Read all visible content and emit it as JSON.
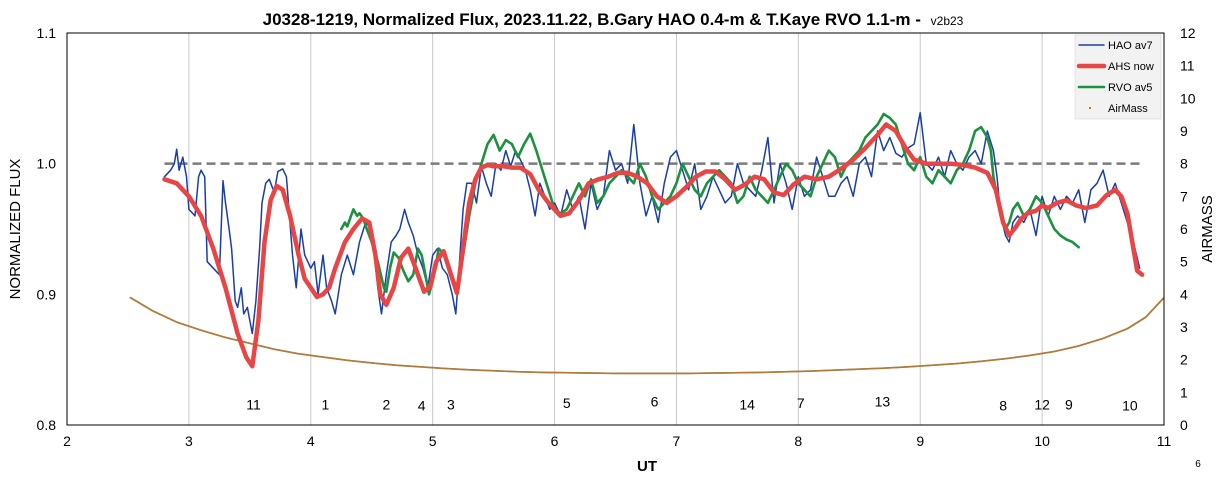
{
  "chart_data": {
    "type": "line",
    "title": "J0328-1219, Normalized Flux, 2023.11.22, B.Gary HAO 0.4-m & T.Kaye RVO 1.1-m -",
    "version": "v2b23",
    "xlabel": "UT",
    "ylabel": "NORMALIZED FLUX",
    "y2label": "AIRMASS",
    "xlim": [
      2,
      11
    ],
    "ylim": [
      0.8,
      1.1
    ],
    "y2lim": [
      0,
      12
    ],
    "x_ticks": [
      "2",
      "3",
      "4",
      "5",
      "6",
      "7",
      "8",
      "9",
      "10",
      "11"
    ],
    "y_ticks": [
      "0.8",
      "0.9",
      "1.0",
      "1.1"
    ],
    "y2_ticks": [
      "0",
      "1",
      "2",
      "3",
      "4",
      "5",
      "6",
      "7",
      "8",
      "9",
      "10",
      "11",
      "12"
    ],
    "grid": "vertical",
    "legend_position": "top-right",
    "reference_line": {
      "y": 1.0,
      "x": [
        2.8,
        10.8
      ],
      "color": "#7a7a7a"
    },
    "series": [
      {
        "name": "HAO av7",
        "color": "#1a3ea8",
        "x": [
          2.8,
          2.85,
          2.88,
          2.9,
          2.92,
          2.95,
          2.98,
          3.0,
          3.05,
          3.08,
          3.1,
          3.13,
          3.15,
          3.2,
          3.25,
          3.28,
          3.3,
          3.33,
          3.35,
          3.38,
          3.4,
          3.43,
          3.45,
          3.48,
          3.5,
          3.52,
          3.55,
          3.58,
          3.6,
          3.63,
          3.66,
          3.7,
          3.73,
          3.77,
          3.8,
          3.85,
          3.88,
          3.92,
          3.95,
          4.0,
          4.03,
          4.06,
          4.1,
          4.13,
          4.17,
          4.2,
          4.25,
          4.3,
          4.35,
          4.4,
          4.45,
          4.5,
          4.55,
          4.58,
          4.62,
          4.66,
          4.7,
          4.73,
          4.77,
          4.8,
          4.84,
          4.88,
          4.92,
          4.96,
          5.0,
          5.04,
          5.08,
          5.12,
          5.16,
          5.19,
          5.22,
          5.25,
          5.28,
          5.32,
          5.36,
          5.4,
          5.44,
          5.48,
          5.52,
          5.56,
          5.6,
          5.64,
          5.68,
          5.72,
          5.76,
          5.8,
          5.84,
          5.88,
          5.92,
          5.96,
          6.0,
          6.05,
          6.1,
          6.15,
          6.2,
          6.25,
          6.3,
          6.35,
          6.4,
          6.45,
          6.5,
          6.55,
          6.6,
          6.65,
          6.7,
          6.75,
          6.8,
          6.85,
          6.9,
          6.95,
          7.0,
          7.05,
          7.1,
          7.15,
          7.2,
          7.25,
          7.3,
          7.35,
          7.4,
          7.45,
          7.5,
          7.55,
          7.6,
          7.65,
          7.7,
          7.75,
          7.8,
          7.85,
          7.9,
          7.95,
          8.0,
          8.05,
          8.1,
          8.15,
          8.2,
          8.25,
          8.3,
          8.35,
          8.4,
          8.45,
          8.5,
          8.55,
          8.6,
          8.65,
          8.7,
          8.75,
          8.8,
          8.85,
          8.9,
          8.95,
          9.0,
          9.05,
          9.1,
          9.15,
          9.2,
          9.25,
          9.3,
          9.35,
          9.4,
          9.45,
          9.5,
          9.55,
          9.6,
          9.63,
          9.66,
          9.7,
          9.73,
          9.76,
          9.8,
          9.85,
          9.9,
          9.95,
          10.0,
          10.05,
          10.1,
          10.15,
          10.2,
          10.25,
          10.3,
          10.35,
          10.4,
          10.45,
          10.5,
          10.55,
          10.6,
          10.65,
          10.7,
          10.75,
          10.8
        ],
        "values": [
          0.99,
          0.995,
          1.0,
          1.011,
          0.995,
          1.005,
          0.99,
          0.965,
          0.96,
          0.99,
          0.995,
          0.99,
          0.925,
          0.92,
          0.915,
          0.987,
          0.97,
          0.95,
          0.935,
          0.895,
          0.89,
          0.905,
          0.885,
          0.89,
          0.88,
          0.87,
          0.895,
          0.935,
          0.97,
          0.985,
          0.988,
          0.978,
          0.994,
          0.996,
          0.99,
          0.93,
          0.905,
          0.95,
          0.93,
          0.92,
          0.925,
          0.9,
          0.93,
          0.905,
          0.895,
          0.885,
          0.915,
          0.93,
          0.915,
          0.94,
          0.955,
          0.95,
          0.905,
          0.885,
          0.915,
          0.94,
          0.945,
          0.95,
          0.965,
          0.955,
          0.945,
          0.93,
          0.92,
          0.905,
          0.93,
          0.935,
          0.92,
          0.915,
          0.9,
          0.885,
          0.925,
          0.965,
          0.985,
          0.985,
          0.97,
          0.998,
          0.985,
          0.975,
          1.0,
          0.995,
          1.01,
          0.998,
          1.01,
          1.003,
          0.995,
          0.98,
          0.96,
          0.985,
          0.975,
          0.965,
          0.97,
          0.96,
          0.98,
          0.965,
          0.975,
          0.95,
          0.985,
          0.965,
          0.975,
          1.01,
          0.995,
          1.0,
          0.985,
          1.03,
          0.985,
          0.96,
          0.975,
          0.955,
          0.985,
          1.005,
          1.01,
          0.995,
          0.98,
          1.0,
          0.965,
          0.975,
          0.99,
          0.98,
          0.97,
          0.975,
          1.0,
          0.985,
          0.98,
          0.975,
          0.995,
          1.02,
          0.97,
          1.0,
          0.985,
          0.965,
          0.99,
          0.975,
          0.98,
          1.005,
          0.99,
          0.975,
          0.975,
          0.985,
          0.99,
          0.975,
          1.0,
          1.005,
          0.99,
          1.025,
          1.01,
          1.02,
          1.008,
          1.005,
          1.012,
          1.015,
          1.039,
          1.0,
          0.995,
          1.005,
          0.99,
          1.01,
          1.0,
          0.995,
          1.005,
          1.01,
          1.0,
          1.025,
          1.01,
          0.99,
          0.96,
          0.945,
          0.94,
          0.955,
          0.96,
          0.955,
          0.965,
          0.945,
          0.975,
          0.96,
          0.975,
          0.965,
          0.975,
          0.97,
          0.98,
          0.955,
          0.98,
          0.985,
          0.995,
          0.975,
          0.985,
          0.97,
          0.955,
          0.94,
          0.92
        ]
      },
      {
        "name": "AHS now",
        "color": "#e84545",
        "x": [
          2.8,
          2.9,
          3.0,
          3.1,
          3.2,
          3.3,
          3.4,
          3.47,
          3.52,
          3.57,
          3.62,
          3.67,
          3.72,
          3.77,
          3.83,
          3.9,
          3.95,
          4.0,
          4.05,
          4.1,
          4.15,
          4.2,
          4.28,
          4.35,
          4.42,
          4.48,
          4.53,
          4.57,
          4.62,
          4.68,
          4.74,
          4.8,
          4.86,
          4.93,
          4.98,
          5.03,
          5.09,
          5.15,
          5.2,
          5.25,
          5.3,
          5.35,
          5.4,
          5.45,
          5.5,
          5.58,
          5.65,
          5.72,
          5.8,
          5.87,
          5.95,
          6.0,
          6.05,
          6.12,
          6.2,
          6.28,
          6.36,
          6.44,
          6.52,
          6.6,
          6.68,
          6.76,
          6.84,
          6.92,
          7.0,
          7.08,
          7.16,
          7.24,
          7.32,
          7.4,
          7.48,
          7.56,
          7.64,
          7.72,
          7.8,
          7.88,
          7.96,
          8.05,
          8.15,
          8.25,
          8.35,
          8.45,
          8.55,
          8.65,
          8.72,
          8.8,
          8.88,
          8.95,
          9.05,
          9.15,
          9.25,
          9.35,
          9.45,
          9.55,
          9.62,
          9.68,
          9.73,
          9.78,
          9.83,
          9.88,
          9.95,
          10.0,
          10.05,
          10.12,
          10.2,
          10.28,
          10.36,
          10.45,
          10.53,
          10.6,
          10.65,
          10.7,
          10.74,
          10.78,
          10.82
        ],
        "values": [
          0.988,
          0.985,
          0.975,
          0.96,
          0.935,
          0.905,
          0.87,
          0.852,
          0.845,
          0.88,
          0.94,
          0.972,
          0.983,
          0.98,
          0.96,
          0.93,
          0.912,
          0.905,
          0.898,
          0.9,
          0.905,
          0.92,
          0.94,
          0.95,
          0.958,
          0.955,
          0.93,
          0.9,
          0.892,
          0.905,
          0.928,
          0.935,
          0.92,
          0.902,
          0.906,
          0.925,
          0.933,
          0.915,
          0.901,
          0.935,
          0.97,
          0.988,
          0.997,
          0.999,
          0.998,
          0.998,
          0.997,
          0.997,
          0.992,
          0.98,
          0.97,
          0.965,
          0.96,
          0.962,
          0.972,
          0.985,
          0.988,
          0.99,
          0.993,
          0.993,
          0.99,
          0.985,
          0.975,
          0.97,
          0.975,
          0.982,
          0.99,
          0.994,
          0.994,
          0.988,
          0.98,
          0.984,
          0.99,
          0.988,
          0.978,
          0.976,
          0.984,
          0.99,
          0.988,
          0.99,
          0.996,
          1.003,
          1.012,
          1.022,
          1.03,
          1.025,
          1.012,
          1.003,
          1.0,
          1.0,
          1.0,
          0.999,
          0.997,
          0.993,
          0.98,
          0.955,
          0.945,
          0.951,
          0.958,
          0.962,
          0.964,
          0.968,
          0.966,
          0.97,
          0.972,
          0.968,
          0.966,
          0.968,
          0.976,
          0.98,
          0.975,
          0.962,
          0.94,
          0.918,
          0.915
        ]
      },
      {
        "name": "RVO av5",
        "color": "#1e9141",
        "x": [
          4.25,
          4.28,
          4.3,
          4.33,
          4.35,
          4.38,
          4.4,
          4.43,
          4.46,
          4.5,
          4.55,
          4.6,
          4.62,
          4.65,
          4.68,
          4.72,
          4.76,
          4.8,
          4.84,
          4.88,
          4.91,
          4.94,
          4.97,
          5.0,
          5.05,
          5.1,
          5.15,
          5.2,
          5.25,
          5.3,
          5.35,
          5.4,
          5.45,
          5.5,
          5.55,
          5.6,
          5.65,
          5.7,
          5.75,
          5.8,
          5.85,
          5.9,
          5.95,
          6.0,
          6.05,
          6.1,
          6.15,
          6.2,
          6.25,
          6.3,
          6.35,
          6.4,
          6.45,
          6.5,
          6.55,
          6.6,
          6.65,
          6.7,
          6.75,
          6.8,
          6.85,
          6.9,
          6.95,
          7.0,
          7.05,
          7.1,
          7.15,
          7.2,
          7.25,
          7.3,
          7.35,
          7.4,
          7.45,
          7.5,
          7.55,
          7.6,
          7.65,
          7.7,
          7.75,
          7.8,
          7.85,
          7.9,
          7.95,
          8.0,
          8.05,
          8.1,
          8.15,
          8.2,
          8.25,
          8.3,
          8.35,
          8.4,
          8.45,
          8.5,
          8.55,
          8.6,
          8.65,
          8.7,
          8.75,
          8.8,
          8.85,
          8.9,
          8.95,
          9.0,
          9.05,
          9.1,
          9.15,
          9.2,
          9.25,
          9.3,
          9.35,
          9.4,
          9.45,
          9.5,
          9.55,
          9.58,
          9.6,
          9.63,
          9.66,
          9.7,
          9.73,
          9.76,
          9.8,
          9.85,
          9.9,
          9.95,
          10.0,
          10.05,
          10.1,
          10.15,
          10.2,
          10.25,
          10.3
        ],
        "values": [
          0.95,
          0.955,
          0.952,
          0.96,
          0.965,
          0.96,
          0.962,
          0.958,
          0.95,
          0.94,
          0.925,
          0.905,
          0.902,
          0.92,
          0.932,
          0.928,
          0.918,
          0.91,
          0.915,
          0.935,
          0.93,
          0.915,
          0.9,
          0.91,
          0.935,
          0.93,
          0.915,
          0.905,
          0.93,
          0.96,
          0.985,
          1.0,
          1.015,
          1.022,
          1.01,
          1.018,
          1.015,
          1.005,
          1.015,
          1.023,
          1.01,
          0.995,
          0.98,
          0.965,
          0.962,
          0.965,
          0.975,
          0.985,
          0.975,
          0.988,
          0.97,
          0.975,
          0.985,
          0.99,
          0.995,
          0.99,
          0.985,
          1.0,
          0.99,
          0.975,
          0.965,
          0.97,
          0.975,
          0.985,
          1.0,
          0.99,
          0.98,
          0.975,
          0.985,
          0.99,
          0.995,
          0.99,
          0.985,
          0.97,
          0.975,
          0.99,
          0.98,
          0.975,
          0.97,
          0.98,
          0.99,
          1.0,
          0.995,
          0.985,
          0.98,
          0.975,
          0.99,
          1.0,
          1.01,
          1.005,
          0.99,
          1.0,
          1.005,
          1.01,
          1.02,
          1.025,
          1.03,
          1.038,
          1.035,
          1.03,
          1.015,
          1.0,
          0.995,
          1.005,
          0.99,
          0.985,
          0.995,
          0.99,
          0.985,
          0.995,
          1.0,
          1.01,
          1.025,
          1.028,
          1.02,
          1.01,
          0.99,
          0.975,
          0.96,
          0.95,
          0.955,
          0.965,
          0.97,
          0.96,
          0.965,
          0.975,
          0.97,
          0.96,
          0.95,
          0.945,
          0.942,
          0.94,
          0.936
        ]
      },
      {
        "name": "AirMass",
        "color": "#b07a3a",
        "axis": "y2",
        "x": [
          2.52,
          2.7,
          2.9,
          3.1,
          3.3,
          3.5,
          3.7,
          3.9,
          4.1,
          4.3,
          4.5,
          4.7,
          4.9,
          5.1,
          5.3,
          5.5,
          5.7,
          5.9,
          6.1,
          6.3,
          6.5,
          6.7,
          6.9,
          7.1,
          7.3,
          7.5,
          7.7,
          7.9,
          8.1,
          8.3,
          8.5,
          8.7,
          8.9,
          9.1,
          9.3,
          9.5,
          9.7,
          9.9,
          10.1,
          10.3,
          10.5,
          10.7,
          10.85,
          11.0
        ],
        "values": [
          3.9,
          3.5,
          3.15,
          2.9,
          2.68,
          2.5,
          2.32,
          2.18,
          2.08,
          1.98,
          1.9,
          1.83,
          1.78,
          1.73,
          1.69,
          1.66,
          1.63,
          1.61,
          1.6,
          1.59,
          1.58,
          1.58,
          1.58,
          1.58,
          1.59,
          1.6,
          1.61,
          1.63,
          1.65,
          1.68,
          1.71,
          1.74,
          1.78,
          1.83,
          1.88,
          1.95,
          2.03,
          2.13,
          2.25,
          2.42,
          2.65,
          2.95,
          3.3,
          3.9
        ]
      }
    ],
    "annotations": [
      {
        "text": "11",
        "x": 3.53,
        "y": 0.812
      },
      {
        "text": "1",
        "x": 4.12,
        "y": 0.812
      },
      {
        "text": "2",
        "x": 4.62,
        "y": 0.812
      },
      {
        "text": "4",
        "x": 4.91,
        "y": 0.811
      },
      {
        "text": "3",
        "x": 5.15,
        "y": 0.812
      },
      {
        "text": "5",
        "x": 6.1,
        "y": 0.813
      },
      {
        "text": "6",
        "x": 6.82,
        "y": 0.814
      },
      {
        "text": "14",
        "x": 7.58,
        "y": 0.812
      },
      {
        "text": "7",
        "x": 8.02,
        "y": 0.813
      },
      {
        "text": "13",
        "x": 8.69,
        "y": 0.814
      },
      {
        "text": "8",
        "x": 9.68,
        "y": 0.811
      },
      {
        "text": "12",
        "x": 10.0,
        "y": 0.812
      },
      {
        "text": "9",
        "x": 10.22,
        "y": 0.812
      },
      {
        "text": "10",
        "x": 10.72,
        "y": 0.811
      }
    ],
    "corner_text": "6"
  }
}
